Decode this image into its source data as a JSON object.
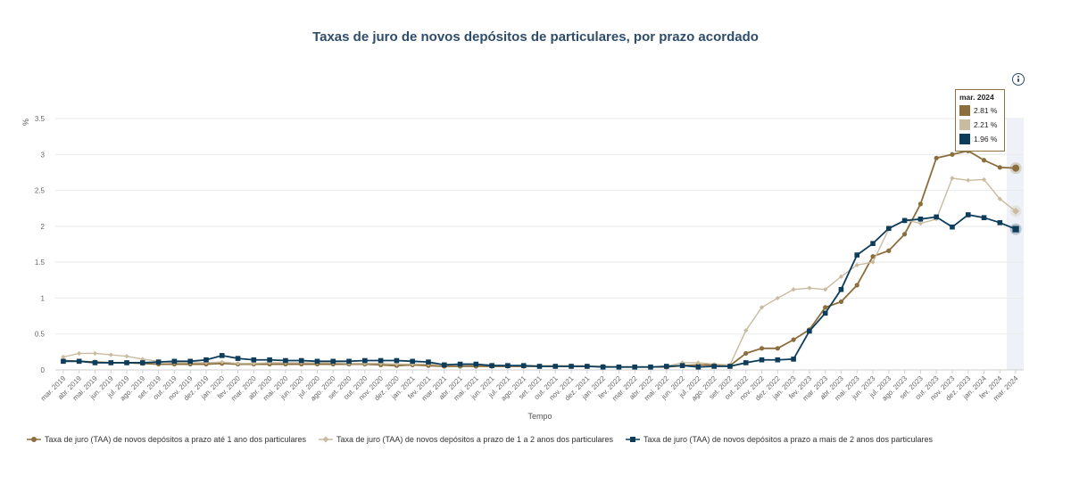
{
  "chart_data": {
    "type": "line",
    "title": "Taxas de juro de novos depósitos de particulares, por prazo acordado",
    "xlabel": "Tempo",
    "ylabel": "%",
    "ylim": [
      0,
      3.5
    ],
    "yticks": [
      "0",
      "0.5",
      "1",
      "1.5",
      "2",
      "2.5",
      "3",
      "3.5"
    ],
    "grid": true,
    "legend": "bottom",
    "categories": [
      "mar. 2019",
      "abr. 2019",
      "mai. 2019",
      "jun. 2019",
      "jul. 2019",
      "ago. 2019",
      "set. 2019",
      "out. 2019",
      "nov. 2019",
      "dez. 2019",
      "jan. 2020",
      "fev. 2020",
      "mar. 2020",
      "abr. 2020",
      "mai. 2020",
      "jun. 2020",
      "jul. 2020",
      "ago. 2020",
      "set. 2020",
      "out. 2020",
      "nov. 2020",
      "dez. 2020",
      "jan. 2021",
      "fev. 2021",
      "mar. 2021",
      "abr. 2021",
      "mai. 2021",
      "jun. 2021",
      "jul. 2021",
      "ago. 2021",
      "set. 2021",
      "out. 2021",
      "nov. 2021",
      "dez. 2021",
      "jan. 2022",
      "fev. 2022",
      "mar. 2022",
      "abr. 2022",
      "mai. 2022",
      "jun. 2022",
      "jul. 2022",
      "ago. 2022",
      "set. 2022",
      "out. 2022",
      "nov. 2022",
      "dez. 2022",
      "jan. 2023",
      "fev. 2023",
      "mar. 2023",
      "abr. 2023",
      "mai. 2023",
      "jun. 2023",
      "jul. 2023",
      "ago. 2023",
      "set. 2023",
      "out. 2023",
      "nov. 2023",
      "dez. 2023",
      "jan. 2024",
      "fev. 2024",
      "mar. 2024"
    ],
    "series": [
      {
        "name": "Taxa de juro (TAA) de novos depósitos a prazo até 1 ano dos particulares",
        "color": "#8c6d3c",
        "marker": "circle",
        "values": [
          0.13,
          0.12,
          0.11,
          0.1,
          0.1,
          0.09,
          0.08,
          0.08,
          0.08,
          0.08,
          0.09,
          0.08,
          0.08,
          0.08,
          0.08,
          0.08,
          0.08,
          0.08,
          0.08,
          0.08,
          0.07,
          0.06,
          0.07,
          0.06,
          0.05,
          0.05,
          0.05,
          0.05,
          0.05,
          0.05,
          0.05,
          0.05,
          0.05,
          0.05,
          0.05,
          0.04,
          0.04,
          0.04,
          0.04,
          0.06,
          0.07,
          0.07,
          0.06,
          0.23,
          0.3,
          0.3,
          0.42,
          0.56,
          0.87,
          0.95,
          1.18,
          1.58,
          1.66,
          1.89,
          2.31,
          2.95,
          3.0,
          3.05,
          2.92,
          2.82,
          2.81
        ]
      },
      {
        "name": "Taxa de juro (TAA) de novos depósitos a prazo de 1 a 2 anos dos particulares",
        "color": "#c9bb9f",
        "marker": "diamond",
        "values": [
          0.18,
          0.23,
          0.23,
          0.21,
          0.19,
          0.15,
          0.12,
          0.1,
          0.1,
          0.1,
          0.11,
          0.09,
          0.09,
          0.1,
          0.1,
          0.1,
          0.1,
          0.1,
          0.09,
          0.09,
          0.09,
          0.08,
          0.08,
          0.08,
          0.08,
          0.07,
          0.07,
          0.07,
          0.06,
          0.06,
          0.06,
          0.06,
          0.06,
          0.06,
          0.05,
          0.04,
          0.04,
          0.04,
          0.05,
          0.1,
          0.1,
          0.08,
          0.07,
          0.55,
          0.87,
          1.0,
          1.12,
          1.14,
          1.12,
          1.3,
          1.46,
          1.5,
          1.96,
          2.09,
          2.04,
          2.1,
          2.67,
          2.64,
          2.65,
          2.38,
          2.21
        ]
      },
      {
        "name": "Taxa de juro (TAA) de novos depósitos a prazo a mais de 2 anos dos particulares",
        "color": "#0e3d5b",
        "marker": "square",
        "values": [
          0.12,
          0.12,
          0.1,
          0.1,
          0.1,
          0.1,
          0.11,
          0.12,
          0.12,
          0.14,
          0.2,
          0.16,
          0.14,
          0.14,
          0.13,
          0.13,
          0.12,
          0.12,
          0.12,
          0.13,
          0.13,
          0.13,
          0.12,
          0.11,
          0.07,
          0.08,
          0.08,
          0.06,
          0.06,
          0.06,
          0.05,
          0.05,
          0.05,
          0.05,
          0.04,
          0.04,
          0.04,
          0.04,
          0.05,
          0.06,
          0.04,
          0.05,
          0.05,
          0.1,
          0.14,
          0.14,
          0.15,
          0.54,
          0.79,
          1.12,
          1.6,
          1.76,
          1.97,
          2.08,
          2.1,
          2.13,
          1.99,
          2.16,
          2.12,
          2.05,
          1.96
        ]
      }
    ]
  },
  "tooltip": {
    "title": "mar. 2024",
    "rows": [
      {
        "color": "#8c6d3c",
        "text": "2.81 %"
      },
      {
        "color": "#c9bb9f",
        "text": "2.21 %"
      },
      {
        "color": "#0e3d5b",
        "text": "1.96 %"
      }
    ]
  }
}
